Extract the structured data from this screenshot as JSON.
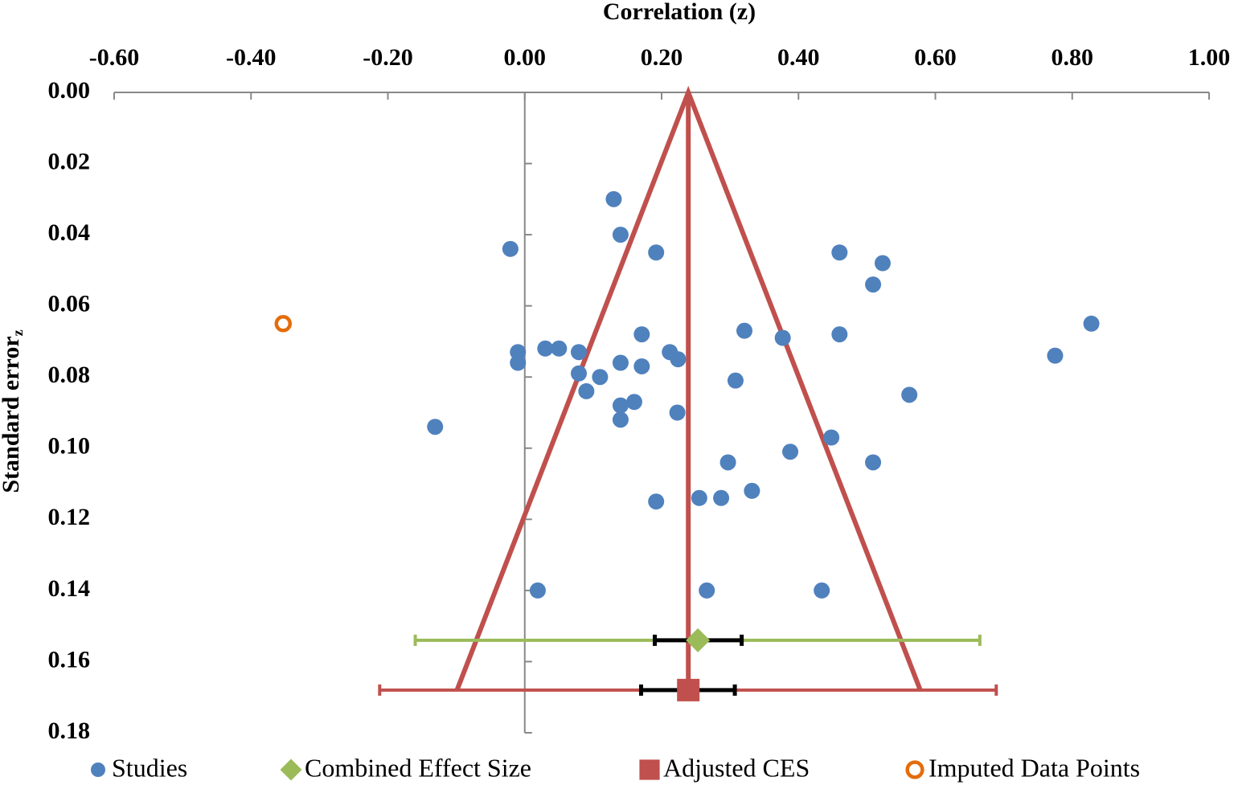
{
  "chart_data": {
    "type": "scatter",
    "x_label": "Correlation (z)",
    "y_label": "Standard error",
    "y_label_subscript": "z",
    "xlim": [
      -0.6,
      1.0
    ],
    "xticks": [
      {
        "value": -0.6,
        "label": "-0.60"
      },
      {
        "value": -0.4,
        "label": "-0.40"
      },
      {
        "value": -0.2,
        "label": "-0.20"
      },
      {
        "value": 0,
        "label": "0.00"
      },
      {
        "value": 0.2,
        "label": "0.20"
      },
      {
        "value": 0.4,
        "label": "0.40"
      },
      {
        "value": 0.6,
        "label": "0.60"
      },
      {
        "value": 0.8,
        "label": "0.80"
      },
      {
        "value": 1.0,
        "label": "1.00"
      }
    ],
    "ylim": [
      0,
      0.18
    ],
    "y_reversed": true,
    "yticks": [
      {
        "value": 0,
        "label": "0.00"
      },
      {
        "value": 0.02,
        "label": "0.02"
      },
      {
        "value": 0.04,
        "label": "0.04"
      },
      {
        "value": 0.06,
        "label": "0.06"
      },
      {
        "value": 0.08,
        "label": "0.08"
      },
      {
        "value": 0.1,
        "label": "0.10"
      },
      {
        "value": 0.12,
        "label": "0.12"
      },
      {
        "value": 0.14,
        "label": "0.14"
      },
      {
        "value": 0.16,
        "label": "0.16"
      },
      {
        "value": 0.18,
        "label": "0.18"
      }
    ],
    "series": [
      {
        "name": "Studies",
        "color": "#4f81bd",
        "marker": "circle",
        "x": [
          0.13,
          -0.021,
          0.14,
          0.192,
          0.46,
          0.523,
          0.509,
          0.828,
          0.171,
          0.321,
          0.46,
          0.377,
          -0.01,
          -0.01,
          0.03,
          0.05,
          0.079,
          0.212,
          0.224,
          0.14,
          0.171,
          0.775,
          0.079,
          0.11,
          0.308,
          0.09,
          0.562,
          0.16,
          0.14,
          0.14,
          0.223,
          -0.131,
          0.448,
          0.388,
          0.297,
          0.509,
          0.332,
          0.192,
          0.255,
          0.287,
          0.019,
          0.266,
          0.434
        ],
        "values": [
          0.03,
          0.044,
          0.04,
          0.045,
          0.045,
          0.048,
          0.054,
          0.065,
          0.068,
          0.067,
          0.068,
          0.069,
          0.073,
          0.076,
          0.072,
          0.072,
          0.073,
          0.073,
          0.075,
          0.076,
          0.077,
          0.074,
          0.079,
          0.08,
          0.081,
          0.084,
          0.085,
          0.087,
          0.088,
          0.092,
          0.09,
          0.094,
          0.097,
          0.101,
          0.104,
          0.104,
          0.112,
          0.115,
          0.114,
          0.114,
          0.14,
          0.14,
          0.14
        ]
      },
      {
        "name": "Combined Effect Size",
        "color": "#9bbb59",
        "marker": "diamond",
        "x": [
          0.253
        ],
        "values": [
          0.154
        ],
        "ci": [
          -0.16,
          0.665
        ],
        "inner_ci": [
          0.19,
          0.317
        ]
      },
      {
        "name": "Adjusted CES",
        "color": "#c0504d",
        "marker": "square",
        "x": [
          0.239
        ],
        "values": [
          0.168
        ],
        "ci": [
          -0.212,
          0.689
        ],
        "inner_ci": [
          0.17,
          0.307
        ]
      },
      {
        "name": "Imputed Data Points",
        "color": "#e46c0a",
        "marker": "ring",
        "x": [
          -0.353
        ],
        "values": [
          0.065
        ]
      }
    ],
    "funnel": {
      "color": "#c0504d",
      "x": [
        -0.099,
        0.239,
        0.578
      ],
      "values": [
        0.168,
        0,
        0.168
      ]
    },
    "center_line": {
      "color": "#c0504d",
      "x": [
        0.239,
        0.239
      ],
      "values": [
        0,
        0.168
      ]
    },
    "inner_ci_color": "#000000"
  }
}
